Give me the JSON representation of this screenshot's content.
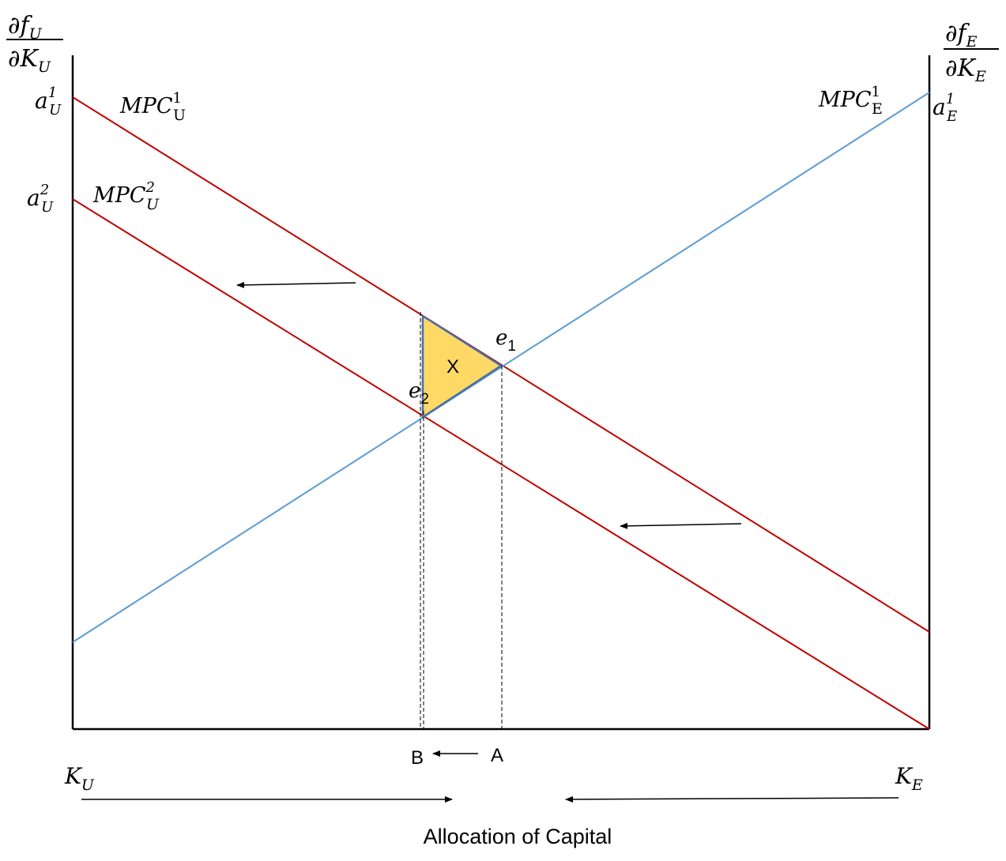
{
  "axes": {
    "left_numerator": "∂f",
    "left_numerator_sub": "U",
    "left_denominator": "∂K",
    "left_denominator_sub": "U",
    "right_numerator": "∂f",
    "right_numerator_sub": "E",
    "right_denominator": "∂K",
    "right_denominator_sub": "E"
  },
  "intercepts": {
    "aU1": {
      "base": "a",
      "sup": "1",
      "sub": "U"
    },
    "aU2": {
      "base": "a",
      "sup": "2",
      "sub": "U"
    },
    "aE1": {
      "base": "a",
      "sup": "1",
      "sub": "E"
    }
  },
  "curves": {
    "mpc_u1": {
      "base": "MPC",
      "sup": "1",
      "sub": "U"
    },
    "mpc_u2": {
      "base": "MPC",
      "sup": "2",
      "sub": "U"
    },
    "mpc_e1": {
      "base": "MPC",
      "sup": "1",
      "sub": "E"
    }
  },
  "points": {
    "e1": {
      "base": "e",
      "sub": "1"
    },
    "e2": {
      "base": "e",
      "sub": "2"
    }
  },
  "area_label": "X",
  "x_marks": {
    "b": "B",
    "a": "A"
  },
  "bottom": {
    "k_u": {
      "base": "K",
      "sub": "U"
    },
    "k_e": {
      "base": "K",
      "sub": "E"
    }
  },
  "caption": "Allocation of Capital",
  "colors": {
    "red_line": "#c00000",
    "blue_line": "#5b9bd5",
    "triangle_fill": "#ffd966",
    "triangle_stroke": "#4a6fa5"
  }
}
